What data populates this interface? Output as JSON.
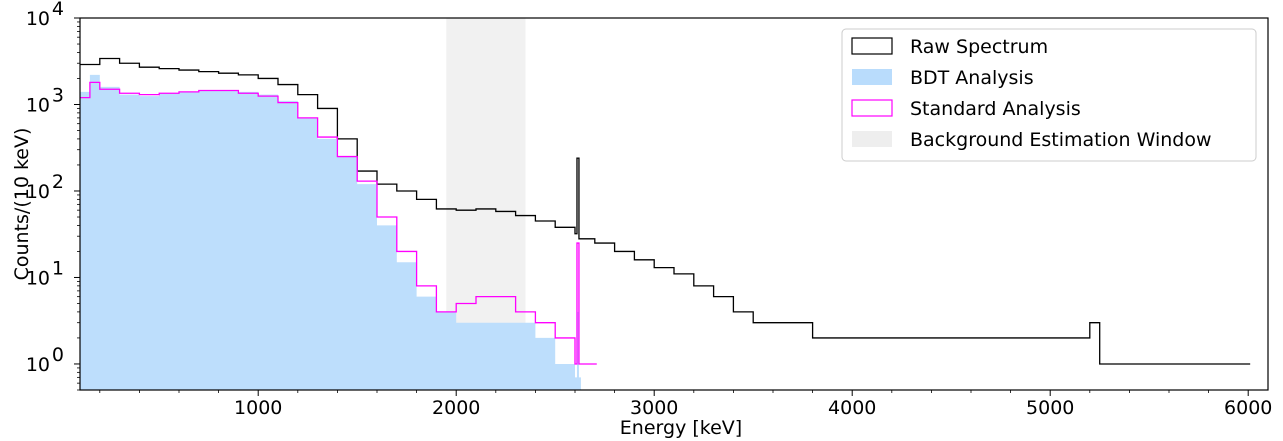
{
  "chart_data": {
    "type": "histogram",
    "title": "",
    "xlabel": "Energy [keV]",
    "ylabel": "Counts/(10 keV)",
    "xlim": [
      100,
      6100
    ],
    "ylim": [
      0.5,
      10000
    ],
    "y_scale": "log",
    "bin_width_keV": 10,
    "x_ticks": [
      1000,
      2000,
      3000,
      4000,
      5000,
      6000
    ],
    "x_tick_labels": [
      "1000",
      "2000",
      "3000",
      "4000",
      "5000",
      "6000"
    ],
    "y_ticks": [
      1,
      10,
      100,
      1000,
      10000
    ],
    "y_tick_labels": [
      {
        "base": "10",
        "exp": "0"
      },
      {
        "base": "10",
        "exp": "1"
      },
      {
        "base": "10",
        "exp": "2"
      },
      {
        "base": "10",
        "exp": "3"
      },
      {
        "base": "10",
        "exp": "4"
      }
    ],
    "grid": false,
    "legend_position": "top-right",
    "background_window_keV": [
      1950,
      2350
    ],
    "series": [
      {
        "name": "Raw Spectrum",
        "style": "step",
        "color": "#000000",
        "points": [
          [
            100,
            2900
          ],
          [
            200,
            3400
          ],
          [
            300,
            3000
          ],
          [
            400,
            2700
          ],
          [
            500,
            2600
          ],
          [
            600,
            2500
          ],
          [
            700,
            2400
          ],
          [
            800,
            2300
          ],
          [
            900,
            2200
          ],
          [
            1000,
            2000
          ],
          [
            1100,
            1700
          ],
          [
            1200,
            1300
          ],
          [
            1300,
            900
          ],
          [
            1400,
            400
          ],
          [
            1500,
            170
          ],
          [
            1600,
            120
          ],
          [
            1700,
            100
          ],
          [
            1800,
            80
          ],
          [
            1900,
            62
          ],
          [
            2000,
            60
          ],
          [
            2100,
            62
          ],
          [
            2200,
            58
          ],
          [
            2300,
            52
          ],
          [
            2400,
            45
          ],
          [
            2500,
            38
          ],
          [
            2600,
            32
          ],
          [
            2610,
            240
          ],
          [
            2620,
            28
          ],
          [
            2700,
            25
          ],
          [
            2800,
            20
          ],
          [
            2900,
            16
          ],
          [
            3000,
            13
          ],
          [
            3100,
            11
          ],
          [
            3200,
            8
          ],
          [
            3300,
            6
          ],
          [
            3400,
            4
          ],
          [
            3500,
            3
          ],
          [
            3600,
            3
          ],
          [
            3700,
            3
          ],
          [
            3800,
            2
          ],
          [
            3900,
            2
          ],
          [
            4000,
            2
          ],
          [
            4200,
            2
          ],
          [
            4400,
            2
          ],
          [
            4600,
            2
          ],
          [
            4800,
            2
          ],
          [
            5000,
            2
          ],
          [
            5200,
            3
          ],
          [
            5250,
            1
          ],
          [
            5400,
            1
          ],
          [
            5600,
            1
          ],
          [
            5800,
            1
          ],
          [
            6000,
            1
          ]
        ]
      },
      {
        "name": "BDT Analysis",
        "style": "filled-step",
        "color": "#b9dcfc",
        "points": [
          [
            100,
            1400
          ],
          [
            150,
            2200
          ],
          [
            200,
            1600
          ],
          [
            300,
            1300
          ],
          [
            400,
            1250
          ],
          [
            500,
            1350
          ],
          [
            600,
            1400
          ],
          [
            700,
            1450
          ],
          [
            800,
            1450
          ],
          [
            900,
            1400
          ],
          [
            1000,
            1300
          ],
          [
            1100,
            1100
          ],
          [
            1200,
            700
          ],
          [
            1300,
            400
          ],
          [
            1400,
            250
          ],
          [
            1500,
            120
          ],
          [
            1600,
            40
          ],
          [
            1700,
            15
          ],
          [
            1800,
            6
          ],
          [
            1900,
            4
          ],
          [
            2000,
            3
          ],
          [
            2100,
            3
          ],
          [
            2200,
            3
          ],
          [
            2300,
            3
          ],
          [
            2400,
            2
          ],
          [
            2500,
            1
          ],
          [
            2600,
            0.7
          ],
          [
            2610,
            4
          ],
          [
            2620,
            0.7
          ]
        ]
      },
      {
        "name": "Standard Analysis",
        "style": "step",
        "color": "#ff00ff",
        "points": [
          [
            100,
            1200
          ],
          [
            150,
            1800
          ],
          [
            200,
            1500
          ],
          [
            300,
            1350
          ],
          [
            400,
            1300
          ],
          [
            500,
            1350
          ],
          [
            600,
            1400
          ],
          [
            700,
            1450
          ],
          [
            800,
            1450
          ],
          [
            900,
            1350
          ],
          [
            1000,
            1250
          ],
          [
            1100,
            1050
          ],
          [
            1200,
            700
          ],
          [
            1300,
            420
          ],
          [
            1400,
            250
          ],
          [
            1500,
            130
          ],
          [
            1600,
            50
          ],
          [
            1700,
            20
          ],
          [
            1800,
            8
          ],
          [
            1900,
            4
          ],
          [
            2000,
            5
          ],
          [
            2100,
            6
          ],
          [
            2200,
            6
          ],
          [
            2300,
            4
          ],
          [
            2400,
            3
          ],
          [
            2500,
            2
          ],
          [
            2600,
            1
          ],
          [
            2610,
            25
          ],
          [
            2620,
            1
          ],
          [
            2700,
            1
          ]
        ]
      },
      {
        "name": "Background Estimation Window",
        "style": "band",
        "color": "#eeeeee"
      }
    ]
  }
}
